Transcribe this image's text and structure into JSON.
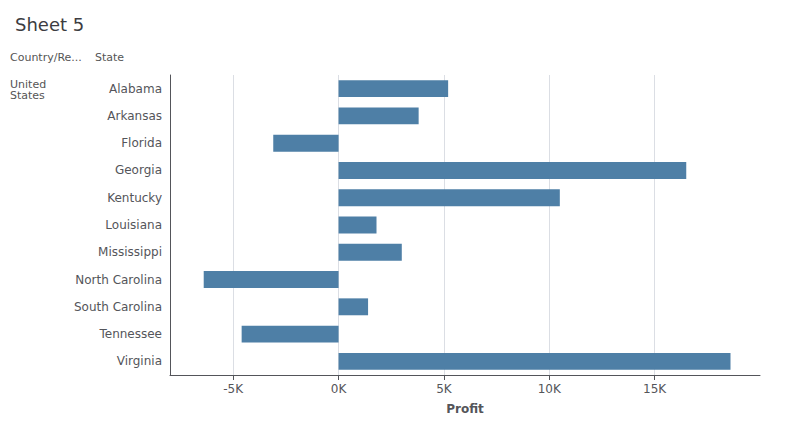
{
  "chart_data": {
    "type": "bar",
    "orientation": "horizontal",
    "title": "Sheet 5",
    "xlabel": "Profit",
    "categories": [
      "Alabama",
      "Arkansas",
      "Florida",
      "Georgia",
      "Kentucky",
      "Louisiana",
      "Mississippi",
      "North Carolina",
      "South Carolina",
      "Tennessee",
      "Virginia"
    ],
    "values": [
      5200,
      3800,
      -3100,
      16500,
      10500,
      1800,
      3000,
      -6400,
      1400,
      -4600,
      18600
    ],
    "color": "#4e7fa6",
    "xlim": [
      -8000,
      20000
    ],
    "xticks": [
      {
        "value": -5000,
        "label": "-5K"
      },
      {
        "value": 0,
        "label": "0K"
      },
      {
        "value": 5000,
        "label": "5K"
      },
      {
        "value": 10000,
        "label": "10K"
      },
      {
        "value": 15000,
        "label": "15K"
      }
    ],
    "grid": true,
    "annotations": [
      "Country/Re...",
      "State",
      "United\nStates"
    ]
  }
}
